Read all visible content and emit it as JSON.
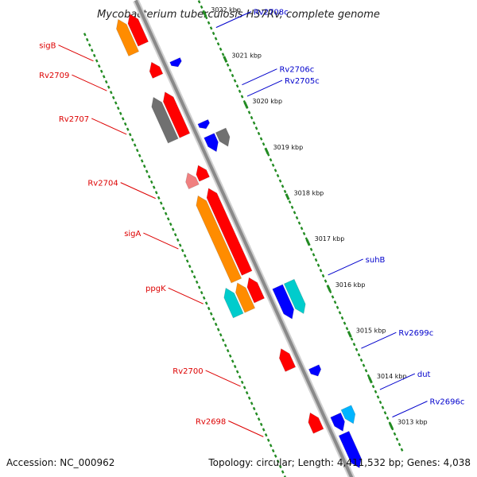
{
  "title": "Mycobacterium tuberculosis H37Rv, complete genome",
  "footer": {
    "accession": "Accession: NC_000962",
    "summary": "Topology: circular; Length: 4,411,532 bp; Genes: 4,038"
  },
  "colors": {
    "backbone": "#8a8a8a",
    "forward_label": "#dd0000",
    "reverse_label": "#0000cc",
    "red": "#ff0000",
    "orange": "#ff8c00",
    "gray": "#707070",
    "pink": "#f08080",
    "cyan": "#00cccc",
    "blue": "#0000ff",
    "skyblue": "#00b4ff",
    "tick": "#228b22"
  },
  "kbp_ticks": [
    {
      "label": "3022 kbp",
      "pos": 3022
    },
    {
      "label": "3021 kbp",
      "pos": 3021
    },
    {
      "label": "3020 kbp",
      "pos": 3020
    },
    {
      "label": "3019 kbp",
      "pos": 3019
    },
    {
      "label": "3018 kbp",
      "pos": 3018
    },
    {
      "label": "3017 kbp",
      "pos": 3017
    },
    {
      "label": "3016 kbp",
      "pos": 3016
    },
    {
      "label": "3015 kbp",
      "pos": 3015
    },
    {
      "label": "3014 kbp",
      "pos": 3014
    },
    {
      "label": "3013 kbp",
      "pos": 3013
    }
  ],
  "labels_left": [
    {
      "text": "sigB",
      "pos": 3022.05
    },
    {
      "text": "Rv2709",
      "pos": 3021.4
    },
    {
      "text": "Rv2707",
      "pos": 3020.45
    },
    {
      "text": "Rv2704",
      "pos": 3019.05
    },
    {
      "text": "sigA",
      "pos": 3017.95
    },
    {
      "text": "ppgK",
      "pos": 3016.75
    },
    {
      "text": "Rv2700",
      "pos": 3014.95
    },
    {
      "text": "Rv2698",
      "pos": 3013.85
    }
  ],
  "labels_right": [
    {
      "text": "Rv2708c",
      "pos": 3021.65
    },
    {
      "text": "Rv2706c",
      "pos": 3020.4
    },
    {
      "text": "Rv2705c",
      "pos": 3020.15
    },
    {
      "text": "suhB",
      "pos": 3016.25
    },
    {
      "text": "Rv2699c",
      "pos": 3014.65
    },
    {
      "text": "dut",
      "pos": 3013.75
    },
    {
      "text": "Rv2696c",
      "pos": 3013.15
    }
  ],
  "genes": [
    {
      "name": "sigB",
      "strand": "+",
      "color": "orange",
      "start": 3021.85,
      "end": 3022.6,
      "lane": 2
    },
    {
      "name": "sigB-2",
      "strand": "+",
      "color": "red",
      "start": 3021.95,
      "end": 3022.6,
      "lane": 1
    },
    {
      "name": "Rv2709",
      "strand": "+",
      "color": "red",
      "start": 3021.25,
      "end": 3021.55,
      "lane": 1
    },
    {
      "name": "Rv2708c",
      "strand": "-",
      "color": "blue",
      "start": 3021.25,
      "end": 3021.4,
      "lane": 1
    },
    {
      "name": "Rv2707",
      "strand": "+",
      "color": "gray",
      "start": 3019.95,
      "end": 3020.9,
      "lane": 2
    },
    {
      "name": "Rv2707-b",
      "strand": "+",
      "color": "red",
      "start": 3019.95,
      "end": 3020.9,
      "lane": 1
    },
    {
      "name": "Rv2706c",
      "strand": "-",
      "color": "blue",
      "start": 3019.9,
      "end": 3020.05,
      "lane": 1
    },
    {
      "name": "Rv2705c",
      "strand": "-",
      "color": "blue",
      "start": 3019.4,
      "end": 3019.75,
      "lane": 1
    },
    {
      "name": "Rv2705c-b",
      "strand": "-",
      "color": "gray",
      "start": 3019.4,
      "end": 3019.75,
      "lane": 2
    },
    {
      "name": "Rv2704",
      "strand": "+",
      "color": "pink",
      "start": 3018.95,
      "end": 3019.25,
      "lane": 2
    },
    {
      "name": "Rv2704-b",
      "strand": "+",
      "color": "red",
      "start": 3019.0,
      "end": 3019.3,
      "lane": 1
    },
    {
      "name": "sigA",
      "strand": "+",
      "color": "orange",
      "start": 3016.9,
      "end": 3018.75,
      "lane": 2
    },
    {
      "name": "sigA-b",
      "strand": "+",
      "color": "red",
      "start": 3016.95,
      "end": 3018.8,
      "lane": 1
    },
    {
      "name": "ppgK",
      "strand": "+",
      "color": "cyan",
      "start": 3016.25,
      "end": 3016.85,
      "lane": 3
    },
    {
      "name": "ppgK-b",
      "strand": "+",
      "color": "orange",
      "start": 3016.25,
      "end": 3016.85,
      "lane": 2
    },
    {
      "name": "ppgK-c",
      "strand": "+",
      "color": "red",
      "start": 3016.35,
      "end": 3016.85,
      "lane": 1
    },
    {
      "name": "suhB",
      "strand": "-",
      "color": "blue",
      "start": 3015.75,
      "end": 3016.45,
      "lane": 1
    },
    {
      "name": "suhB-b",
      "strand": "-",
      "color": "cyan",
      "start": 3015.75,
      "end": 3016.45,
      "lane": 2
    },
    {
      "name": "Rv2700",
      "strand": "+",
      "color": "red",
      "start": 3014.85,
      "end": 3015.3,
      "lane": 1
    },
    {
      "name": "Rv2699c",
      "strand": "-",
      "color": "blue",
      "start": 3014.5,
      "end": 3014.7,
      "lane": 1
    },
    {
      "name": "Rv2698",
      "strand": "+",
      "color": "red",
      "start": 3013.5,
      "end": 3013.9,
      "lane": 1
    },
    {
      "name": "dut",
      "strand": "-",
      "color": "blue",
      "start": 3013.3,
      "end": 3013.65,
      "lane": 1
    },
    {
      "name": "dut-b",
      "strand": "-",
      "color": "skyblue",
      "start": 3013.35,
      "end": 3013.7,
      "lane": 2
    },
    {
      "name": "Rv2696c",
      "strand": "-",
      "color": "blue",
      "start": 3012.5,
      "end": 3013.25,
      "lane": 1
    }
  ]
}
